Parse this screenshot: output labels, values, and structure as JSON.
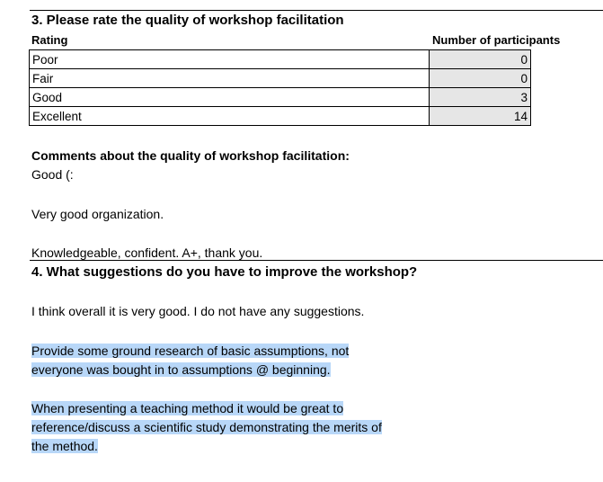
{
  "q3": {
    "title": "3. Please rate the quality of workshop facilitation",
    "col_rating": "Rating",
    "col_count": "Number of participants",
    "rows": [
      {
        "label": "Poor",
        "value": "0"
      },
      {
        "label": "Fair",
        "value": "0"
      },
      {
        "label": "Good",
        "value": "3"
      },
      {
        "label": "Excellent",
        "value": "14"
      }
    ],
    "comments_heading": "Comments about the quality of workshop facilitation:",
    "comments": [
      "Good (:",
      "Very good organization.",
      "Knowledgeable, confident. A+, thank you."
    ]
  },
  "q4": {
    "title": "4. What suggestions do you have to improve the workshop?",
    "responses": [
      {
        "lines": [
          "I think overall it is very good. I do not have any suggestions."
        ]
      },
      {
        "lines": [
          "Provide some ground research of basic assumptions, not",
          "everyone was bought in to assumptions @ beginning."
        ]
      },
      {
        "lines": [
          "When presenting a teaching method it would be great to",
          "reference/discuss a scientific study demonstrating the merits of",
          "the method."
        ]
      }
    ]
  },
  "colors": {
    "highlight": "#b8d7f8",
    "value_cell": "#e6e6e6"
  }
}
